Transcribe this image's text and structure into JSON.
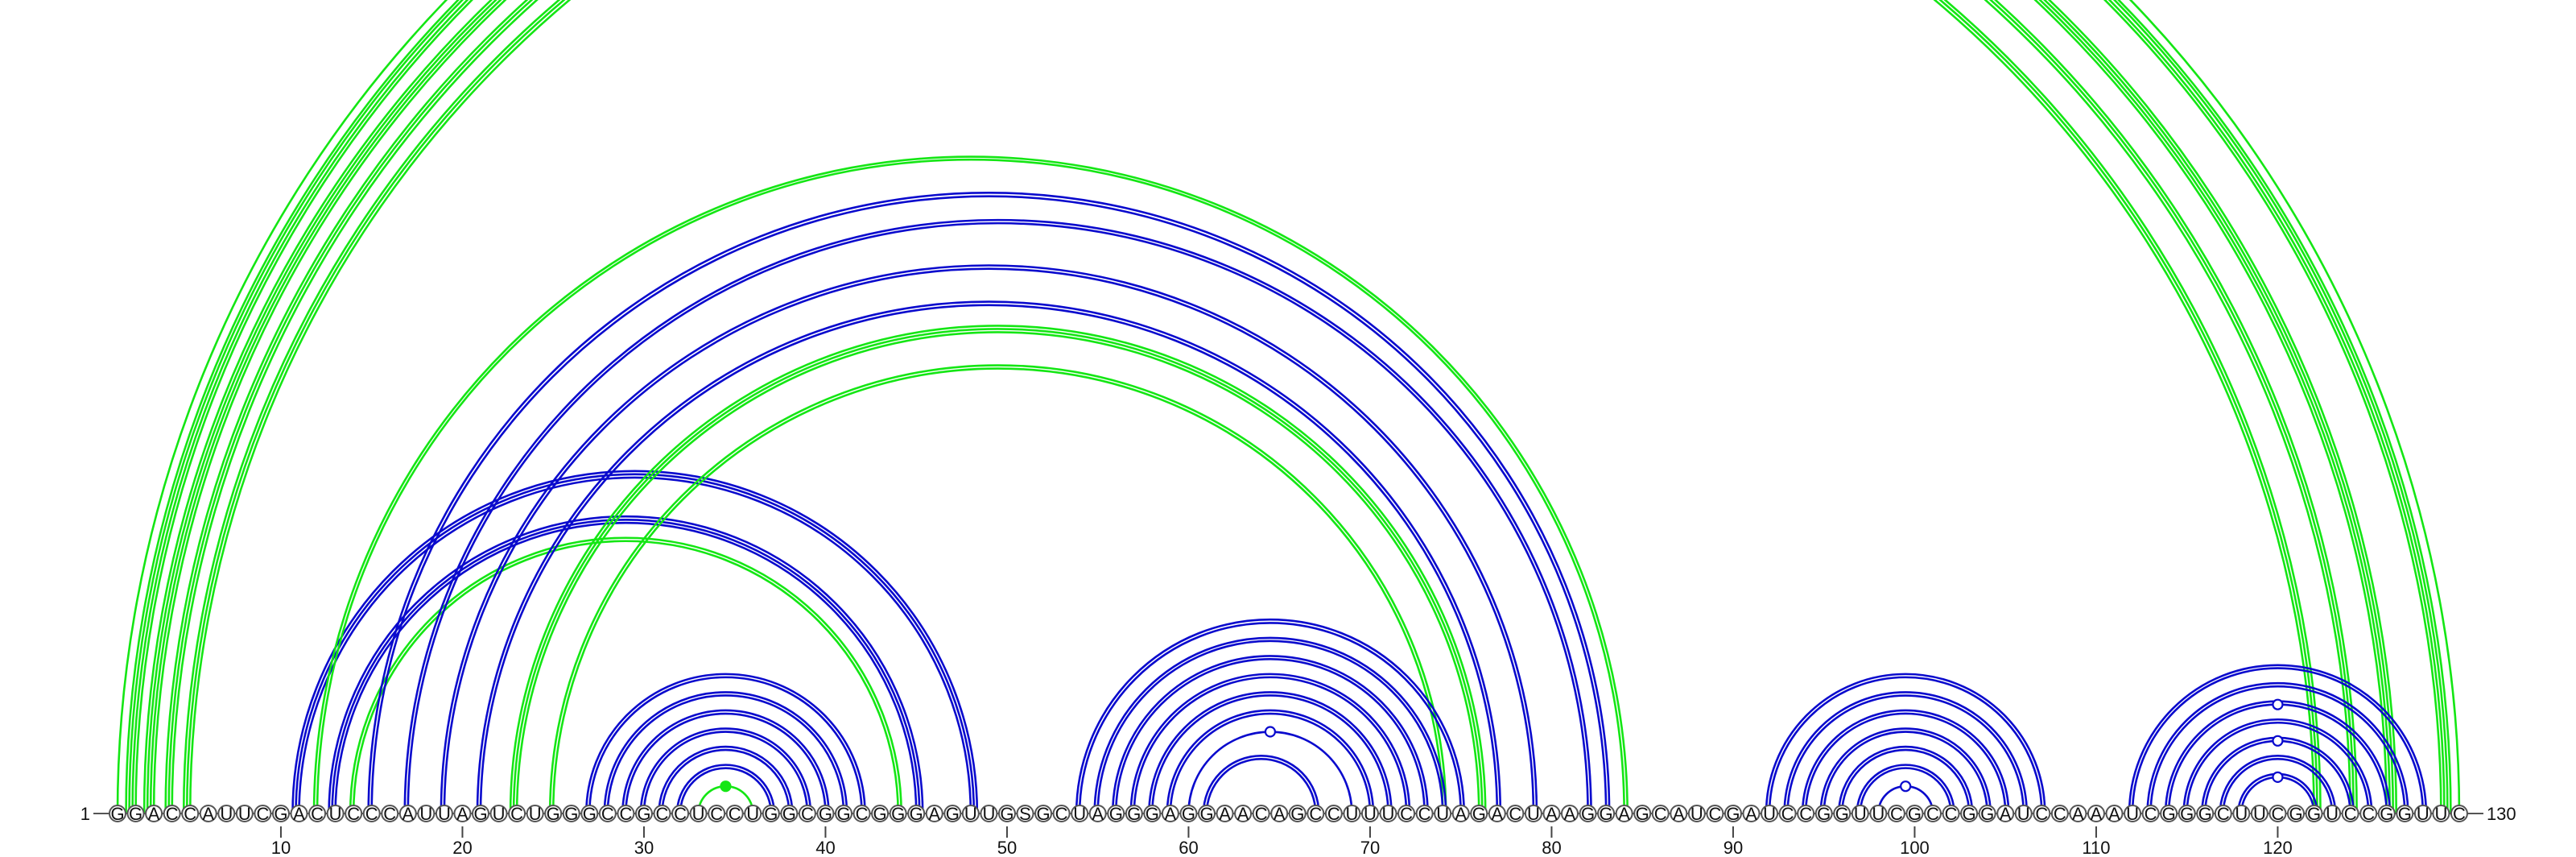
{
  "sequence": "GGACCAUUCGACUCCCAUUAGUCUGGGCCGCCUCCUGGCGGCGGGAGUUGSGCUAGGGAGGAACAGCCUUUCCUAGACUAAGGAGCAUCGAUCCGGUUCGCCGGAUCCAAAUCGGGCUUCGGUCCGGUUC",
  "start_label": "1",
  "end_label": "130",
  "ticks": [
    10,
    20,
    30,
    40,
    50,
    60,
    70,
    80,
    90,
    100,
    110,
    120
  ],
  "colors": {
    "green": "#14e614",
    "blue": "#0a0acd"
  },
  "helices": [
    {
      "color": "green",
      "i": 1,
      "j": 130,
      "len": 1
    },
    {
      "color": "green",
      "i": 2,
      "j": 129,
      "len": 4
    },
    {
      "color": "green",
      "i": 3,
      "j": 126,
      "len": 4
    },
    {
      "color": "green",
      "i": 4,
      "j": 124,
      "len": 3
    },
    {
      "color": "green",
      "i": 5,
      "j": 122,
      "len": 3
    },
    {
      "color": "blue",
      "i": 11,
      "j": 48,
      "len": 3
    },
    {
      "color": "green",
      "i": 12,
      "j": 84,
      "len": 2
    },
    {
      "color": "blue",
      "i": 13,
      "j": 45,
      "len": 3
    },
    {
      "color": "green",
      "i": 14,
      "j": 44,
      "len": 2
    },
    {
      "color": "blue",
      "i": 15,
      "j": 83,
      "len": 2
    },
    {
      "color": "blue",
      "i": 17,
      "j": 82,
      "len": 2
    },
    {
      "color": "blue",
      "i": 19,
      "j": 79,
      "len": 2
    },
    {
      "color": "blue",
      "i": 21,
      "j": 77,
      "len": 2
    },
    {
      "color": "green",
      "i": 23,
      "j": 76,
      "len": 3
    },
    {
      "color": "green",
      "i": 25,
      "j": 74,
      "len": 2
    },
    {
      "color": "blue",
      "i": 27,
      "j": 42,
      "len": 2
    },
    {
      "color": "blue",
      "i": 28,
      "j": 41,
      "len": 2
    },
    {
      "color": "blue",
      "i": 29,
      "j": 40,
      "len": 2
    },
    {
      "color": "blue",
      "i": 30,
      "j": 39,
      "len": 2
    },
    {
      "color": "blue",
      "i": 31,
      "j": 38,
      "len": 2
    },
    {
      "color": "blue",
      "i": 32,
      "j": 37,
      "len": 2
    },
    {
      "color": "green",
      "i": 33,
      "j": 36,
      "len": 1
    },
    {
      "color": "blue",
      "i": 54,
      "j": 75,
      "len": 2
    },
    {
      "color": "blue",
      "i": 55,
      "j": 74,
      "len": 2
    },
    {
      "color": "blue",
      "i": 56,
      "j": 73,
      "len": 2
    },
    {
      "color": "blue",
      "i": 57,
      "j": 72,
      "len": 2
    },
    {
      "color": "blue",
      "i": 58,
      "j": 71,
      "len": 2
    },
    {
      "color": "blue",
      "i": 59,
      "j": 70,
      "len": 2
    },
    {
      "color": "blue",
      "i": 60,
      "j": 69,
      "len": 1
    },
    {
      "color": "blue",
      "i": 61,
      "j": 67,
      "len": 2
    },
    {
      "color": "blue",
      "i": 92,
      "j": 107,
      "len": 2
    },
    {
      "color": "blue",
      "i": 93,
      "j": 106,
      "len": 2
    },
    {
      "color": "blue",
      "i": 94,
      "j": 105,
      "len": 2
    },
    {
      "color": "blue",
      "i": 95,
      "j": 104,
      "len": 2
    },
    {
      "color": "blue",
      "i": 96,
      "j": 103,
      "len": 2
    },
    {
      "color": "blue",
      "i": 97,
      "j": 102,
      "len": 2
    },
    {
      "color": "blue",
      "i": 98,
      "j": 101,
      "len": 1
    },
    {
      "color": "blue",
      "i": 112,
      "j": 128,
      "len": 2
    },
    {
      "color": "blue",
      "i": 113,
      "j": 127,
      "len": 2
    },
    {
      "color": "blue",
      "i": 114,
      "j": 126,
      "len": 2
    },
    {
      "color": "blue",
      "i": 115,
      "j": 125,
      "len": 2
    },
    {
      "color": "blue",
      "i": 116,
      "j": 124,
      "len": 2
    },
    {
      "color": "blue",
      "i": 117,
      "j": 123,
      "len": 2
    },
    {
      "color": "blue",
      "i": 118,
      "j": 122,
      "len": 2
    }
  ],
  "markers": [
    {
      "color": "green",
      "i": 1,
      "j": 130,
      "level": 3,
      "filled": false
    },
    {
      "color": "green",
      "i": 33,
      "j": 36,
      "level": 0,
      "filled": true
    },
    {
      "color": "blue",
      "i": 60,
      "j": 69,
      "level": 0,
      "filled": false
    },
    {
      "color": "blue",
      "i": 98,
      "j": 101,
      "level": 0,
      "filled": false
    },
    {
      "color": "blue",
      "i": 118,
      "j": 122,
      "level": 0,
      "filled": false
    },
    {
      "color": "blue",
      "i": 116,
      "j": 124,
      "level": 0,
      "filled": false
    },
    {
      "color": "blue",
      "i": 114,
      "j": 126,
      "level": 0,
      "filled": false
    }
  ]
}
